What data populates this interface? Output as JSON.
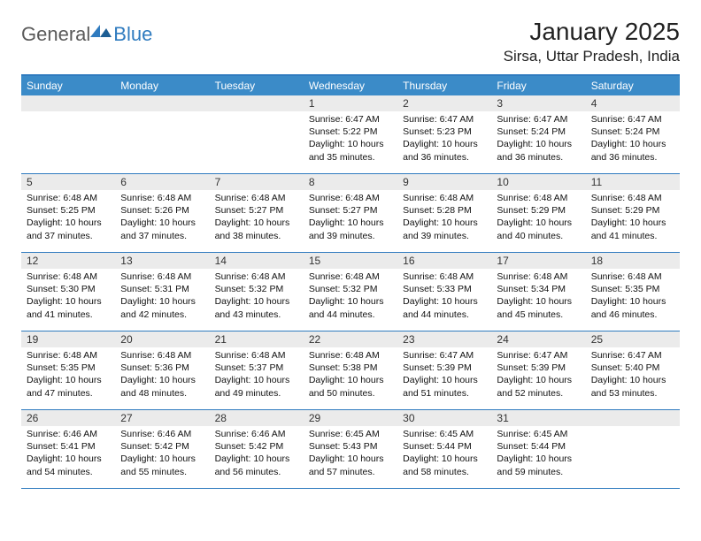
{
  "logo": {
    "general": "General",
    "blue": "Blue"
  },
  "title": "January 2025",
  "location": "Sirsa, Uttar Pradesh, India",
  "daynames": [
    "Sunday",
    "Monday",
    "Tuesday",
    "Wednesday",
    "Thursday",
    "Friday",
    "Saturday"
  ],
  "colors": {
    "header_bg": "#3b8bc8",
    "accent": "#2f7bbf",
    "daynum_bg": "#ebebeb",
    "text": "#111111",
    "logo_gray": "#5a5a5a"
  },
  "weeks": [
    [
      {
        "day": ""
      },
      {
        "day": ""
      },
      {
        "day": ""
      },
      {
        "day": "1",
        "sunrise": "Sunrise: 6:47 AM",
        "sunset": "Sunset: 5:22 PM",
        "daylight": "Daylight: 10 hours and 35 minutes."
      },
      {
        "day": "2",
        "sunrise": "Sunrise: 6:47 AM",
        "sunset": "Sunset: 5:23 PM",
        "daylight": "Daylight: 10 hours and 36 minutes."
      },
      {
        "day": "3",
        "sunrise": "Sunrise: 6:47 AM",
        "sunset": "Sunset: 5:24 PM",
        "daylight": "Daylight: 10 hours and 36 minutes."
      },
      {
        "day": "4",
        "sunrise": "Sunrise: 6:47 AM",
        "sunset": "Sunset: 5:24 PM",
        "daylight": "Daylight: 10 hours and 36 minutes."
      }
    ],
    [
      {
        "day": "5",
        "sunrise": "Sunrise: 6:48 AM",
        "sunset": "Sunset: 5:25 PM",
        "daylight": "Daylight: 10 hours and 37 minutes."
      },
      {
        "day": "6",
        "sunrise": "Sunrise: 6:48 AM",
        "sunset": "Sunset: 5:26 PM",
        "daylight": "Daylight: 10 hours and 37 minutes."
      },
      {
        "day": "7",
        "sunrise": "Sunrise: 6:48 AM",
        "sunset": "Sunset: 5:27 PM",
        "daylight": "Daylight: 10 hours and 38 minutes."
      },
      {
        "day": "8",
        "sunrise": "Sunrise: 6:48 AM",
        "sunset": "Sunset: 5:27 PM",
        "daylight": "Daylight: 10 hours and 39 minutes."
      },
      {
        "day": "9",
        "sunrise": "Sunrise: 6:48 AM",
        "sunset": "Sunset: 5:28 PM",
        "daylight": "Daylight: 10 hours and 39 minutes."
      },
      {
        "day": "10",
        "sunrise": "Sunrise: 6:48 AM",
        "sunset": "Sunset: 5:29 PM",
        "daylight": "Daylight: 10 hours and 40 minutes."
      },
      {
        "day": "11",
        "sunrise": "Sunrise: 6:48 AM",
        "sunset": "Sunset: 5:29 PM",
        "daylight": "Daylight: 10 hours and 41 minutes."
      }
    ],
    [
      {
        "day": "12",
        "sunrise": "Sunrise: 6:48 AM",
        "sunset": "Sunset: 5:30 PM",
        "daylight": "Daylight: 10 hours and 41 minutes."
      },
      {
        "day": "13",
        "sunrise": "Sunrise: 6:48 AM",
        "sunset": "Sunset: 5:31 PM",
        "daylight": "Daylight: 10 hours and 42 minutes."
      },
      {
        "day": "14",
        "sunrise": "Sunrise: 6:48 AM",
        "sunset": "Sunset: 5:32 PM",
        "daylight": "Daylight: 10 hours and 43 minutes."
      },
      {
        "day": "15",
        "sunrise": "Sunrise: 6:48 AM",
        "sunset": "Sunset: 5:32 PM",
        "daylight": "Daylight: 10 hours and 44 minutes."
      },
      {
        "day": "16",
        "sunrise": "Sunrise: 6:48 AM",
        "sunset": "Sunset: 5:33 PM",
        "daylight": "Daylight: 10 hours and 44 minutes."
      },
      {
        "day": "17",
        "sunrise": "Sunrise: 6:48 AM",
        "sunset": "Sunset: 5:34 PM",
        "daylight": "Daylight: 10 hours and 45 minutes."
      },
      {
        "day": "18",
        "sunrise": "Sunrise: 6:48 AM",
        "sunset": "Sunset: 5:35 PM",
        "daylight": "Daylight: 10 hours and 46 minutes."
      }
    ],
    [
      {
        "day": "19",
        "sunrise": "Sunrise: 6:48 AM",
        "sunset": "Sunset: 5:35 PM",
        "daylight": "Daylight: 10 hours and 47 minutes."
      },
      {
        "day": "20",
        "sunrise": "Sunrise: 6:48 AM",
        "sunset": "Sunset: 5:36 PM",
        "daylight": "Daylight: 10 hours and 48 minutes."
      },
      {
        "day": "21",
        "sunrise": "Sunrise: 6:48 AM",
        "sunset": "Sunset: 5:37 PM",
        "daylight": "Daylight: 10 hours and 49 minutes."
      },
      {
        "day": "22",
        "sunrise": "Sunrise: 6:48 AM",
        "sunset": "Sunset: 5:38 PM",
        "daylight": "Daylight: 10 hours and 50 minutes."
      },
      {
        "day": "23",
        "sunrise": "Sunrise: 6:47 AM",
        "sunset": "Sunset: 5:39 PM",
        "daylight": "Daylight: 10 hours and 51 minutes."
      },
      {
        "day": "24",
        "sunrise": "Sunrise: 6:47 AM",
        "sunset": "Sunset: 5:39 PM",
        "daylight": "Daylight: 10 hours and 52 minutes."
      },
      {
        "day": "25",
        "sunrise": "Sunrise: 6:47 AM",
        "sunset": "Sunset: 5:40 PM",
        "daylight": "Daylight: 10 hours and 53 minutes."
      }
    ],
    [
      {
        "day": "26",
        "sunrise": "Sunrise: 6:46 AM",
        "sunset": "Sunset: 5:41 PM",
        "daylight": "Daylight: 10 hours and 54 minutes."
      },
      {
        "day": "27",
        "sunrise": "Sunrise: 6:46 AM",
        "sunset": "Sunset: 5:42 PM",
        "daylight": "Daylight: 10 hours and 55 minutes."
      },
      {
        "day": "28",
        "sunrise": "Sunrise: 6:46 AM",
        "sunset": "Sunset: 5:42 PM",
        "daylight": "Daylight: 10 hours and 56 minutes."
      },
      {
        "day": "29",
        "sunrise": "Sunrise: 6:45 AM",
        "sunset": "Sunset: 5:43 PM",
        "daylight": "Daylight: 10 hours and 57 minutes."
      },
      {
        "day": "30",
        "sunrise": "Sunrise: 6:45 AM",
        "sunset": "Sunset: 5:44 PM",
        "daylight": "Daylight: 10 hours and 58 minutes."
      },
      {
        "day": "31",
        "sunrise": "Sunrise: 6:45 AM",
        "sunset": "Sunset: 5:44 PM",
        "daylight": "Daylight: 10 hours and 59 minutes."
      },
      {
        "day": ""
      }
    ]
  ]
}
